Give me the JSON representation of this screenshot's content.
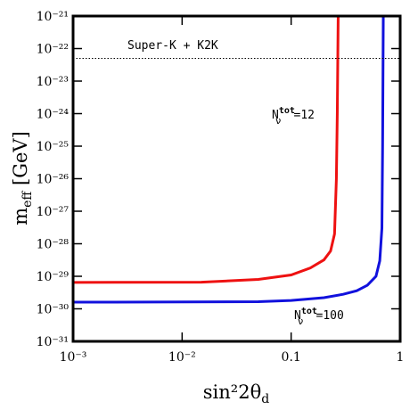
{
  "chart_data": {
    "type": "line",
    "xscale": "log",
    "yscale": "log",
    "xlim": [
      0.001,
      1
    ],
    "ylim": [
      1e-31,
      1e-21
    ],
    "xticks": [
      {
        "value": 0.001,
        "label": "10⁻³"
      },
      {
        "value": 0.01,
        "label": "10⁻²"
      },
      0.1,
      1
    ],
    "yticks": [
      {
        "value": 1e-31,
        "label": "10⁻³¹"
      },
      {
        "value": 1e-30,
        "label": "10⁻³⁰"
      },
      {
        "value": 1e-29,
        "label": "10⁻²⁹"
      },
      {
        "value": 1e-28,
        "label": "10⁻²⁸"
      },
      {
        "value": 1e-27,
        "label": "10⁻²⁷"
      },
      {
        "value": 1e-26,
        "label": "10⁻²⁶"
      },
      {
        "value": 1e-25,
        "label": "10⁻²⁵"
      },
      {
        "value": 1e-24,
        "label": "10⁻²⁴"
      },
      {
        "value": 1e-23,
        "label": "10⁻²³"
      },
      {
        "value": 1e-22,
        "label": "10⁻²²"
      },
      {
        "value": 1e-21,
        "label": "10⁻²¹"
      }
    ],
    "xlabel": {
      "main": "sin²2θ",
      "sub": "d"
    },
    "ylabel": {
      "main": "m",
      "sub": "eff",
      "tail": " [GeV]"
    },
    "series": [
      {
        "color": "#ee1111",
        "x": [
          0.001,
          0.015,
          0.05,
          0.1,
          0.15,
          0.2,
          0.23,
          0.25,
          0.26,
          0.265,
          0.27
        ],
        "y": [
          6.5e-30,
          6.6e-30,
          8e-30,
          1.1e-29,
          1.8e-29,
          3.2e-29,
          6e-29,
          2e-28,
          1e-26,
          1e-24,
          1e-21
        ]
      },
      {
        "color": "#1111dd",
        "x": [
          0.001,
          0.05,
          0.1,
          0.2,
          0.3,
          0.4,
          0.5,
          0.6,
          0.65,
          0.68,
          0.69,
          0.7
        ],
        "y": [
          1.6e-30,
          1.65e-30,
          1.8e-30,
          2.2e-30,
          2.8e-30,
          3.6e-30,
          5.3e-30,
          1e-29,
          3e-29,
          3e-28,
          1e-25,
          1e-21
        ]
      }
    ],
    "hline": {
      "value": 5e-23,
      "label": "Super-K + K2K"
    },
    "annotations": [
      {
        "main": "N",
        "sup": "tot",
        "sub": "ν",
        "tail": "=12"
      },
      {
        "main": "N",
        "sup": "tot",
        "sub": "ν",
        "tail": "=100"
      }
    ]
  }
}
